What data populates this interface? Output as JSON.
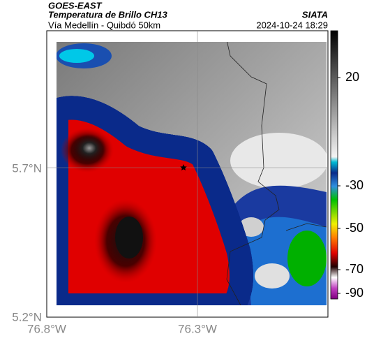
{
  "header": {
    "title": "GOES-EAST",
    "subtitle": "Temperatura de Brillo CH13",
    "caption": "Vía Medellín - Quibdó 50km",
    "source": "SIATA",
    "timestamp": "2024-10-24 18:29"
  },
  "map": {
    "lat_labels": [
      "5.7°N",
      "5.2°N"
    ],
    "lon_labels": [
      "76.8°W",
      "76.3°W"
    ]
  },
  "colorbar": {
    "tick_labels": [
      "20",
      "-30",
      "-50",
      "-70",
      "-90"
    ]
  }
}
